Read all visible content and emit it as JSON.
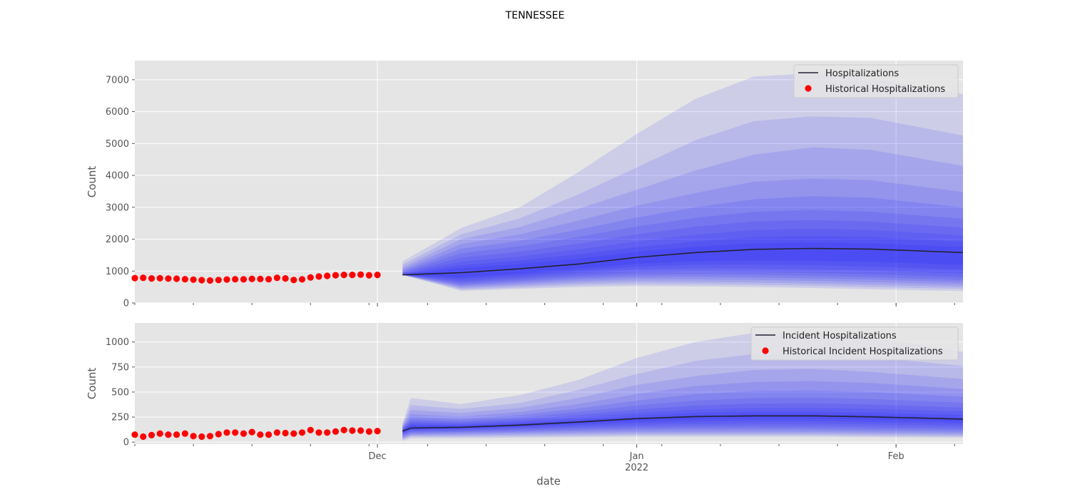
{
  "suptitle": "TENNESSEE",
  "colors": {
    "background": "#E5E5E5",
    "grid": "#FFFFFF",
    "band": "#0000FF",
    "median_line": "#222233",
    "history_marker": "#FF0000",
    "text": "#555555"
  },
  "xaxis": {
    "label": "date",
    "start_date": "2021-11-02",
    "end_date": "2022-02-09",
    "tick_labels": [
      {
        "date": "2021-12-01",
        "line1": "Dec",
        "line2": ""
      },
      {
        "date": "2022-01-01",
        "line1": "Jan",
        "line2": "2022"
      },
      {
        "date": "2022-02-01",
        "line1": "Feb",
        "line2": ""
      }
    ]
  },
  "chart_data": [
    {
      "type": "line",
      "panel": "top",
      "ylabel": "Count",
      "ylim": [
        0,
        7600
      ],
      "yticks": [
        0,
        1000,
        2000,
        3000,
        4000,
        5000,
        6000,
        7000
      ],
      "legend": {
        "placement": "top-right",
        "entries": [
          "Hospitalizations",
          "Historical Hospitalizations"
        ]
      },
      "history": {
        "name": "Historical Hospitalizations",
        "start_date": "2021-11-02",
        "values": [
          780,
          790,
          770,
          775,
          765,
          760,
          745,
          730,
          715,
          705,
          720,
          735,
          745,
          740,
          755,
          750,
          745,
          790,
          770,
          720,
          740,
          800,
          830,
          850,
          870,
          880,
          880,
          890,
          870,
          880
        ]
      },
      "forecast": {
        "name": "Hospitalizations",
        "dates": [
          "2021-12-04",
          "2021-12-11",
          "2021-12-18",
          "2021-12-25",
          "2022-01-01",
          "2022-01-08",
          "2022-01-15",
          "2022-01-22",
          "2022-01-29",
          "2022-02-09"
        ],
        "median": [
          880,
          950,
          1070,
          1220,
          1430,
          1580,
          1680,
          1710,
          1690,
          1580
        ],
        "bands": [
          {
            "lower": [
              880,
              380,
              440,
              500,
              530,
              520,
              500,
              470,
              430,
              370
            ],
            "upper": [
              1300,
              2350,
              3000,
              4100,
              5300,
              6400,
              7100,
              7200,
              7050,
              6550
            ]
          },
          {
            "lower": [
              880,
              420,
              490,
              560,
              600,
              590,
              570,
              540,
              500,
              440
            ],
            "upper": [
              1200,
              2150,
              2650,
              3400,
              4250,
              5100,
              5700,
              5850,
              5800,
              5250
            ]
          },
          {
            "lower": [
              880,
              460,
              540,
              620,
              670,
              660,
              640,
              610,
              570,
              510
            ],
            "upper": [
              1120,
              2000,
              2380,
              2950,
              3550,
              4150,
              4650,
              4880,
              4800,
              4300
            ]
          },
          {
            "lower": [
              880,
              500,
              590,
              680,
              740,
              740,
              720,
              690,
              650,
              580
            ],
            "upper": [
              1060,
              1850,
              2150,
              2580,
              3050,
              3450,
              3800,
              3900,
              3850,
              3480
            ]
          },
          {
            "lower": [
              880,
              540,
              640,
              740,
              810,
              820,
              800,
              770,
              730,
              650
            ],
            "upper": [
              1010,
              1700,
              1950,
              2300,
              2680,
              3000,
              3250,
              3350,
              3300,
              3000
            ]
          },
          {
            "lower": [
              880,
              580,
              690,
              800,
              880,
              900,
              880,
              850,
              810,
              720
            ],
            "upper": [
              970,
              1560,
              1780,
              2070,
              2400,
              2670,
              2860,
              2920,
              2860,
              2640
            ]
          },
          {
            "lower": [
              880,
              630,
              740,
              860,
              960,
              990,
              970,
              940,
              900,
              810
            ],
            "upper": [
              940,
              1420,
              1610,
              1860,
              2150,
              2390,
              2560,
              2600,
              2550,
              2360
            ]
          },
          {
            "lower": [
              880,
              680,
              800,
              930,
              1050,
              1090,
              1080,
              1050,
              1010,
              920
            ],
            "upper": [
              915,
              1290,
              1460,
              1680,
              1930,
              2140,
              2290,
              2330,
              2290,
              2120
            ]
          },
          {
            "lower": [
              880,
              740,
              860,
              1000,
              1140,
              1200,
              1200,
              1180,
              1140,
              1040
            ],
            "upper": [
              900,
              1180,
              1330,
              1520,
              1750,
              1930,
              2060,
              2100,
              2060,
              1920
            ]
          },
          {
            "lower": [
              880,
              800,
              920,
              1070,
              1230,
              1310,
              1330,
              1320,
              1290,
              1190
            ],
            "upper": [
              890,
              1090,
              1220,
              1390,
              1600,
              1760,
              1870,
              1900,
              1870,
              1750
            ]
          }
        ]
      }
    },
    {
      "type": "line",
      "panel": "bottom",
      "ylabel": "Count",
      "ylim": [
        -20,
        1190
      ],
      "yticks": [
        0,
        250,
        500,
        750,
        1000
      ],
      "legend": {
        "placement": "top-right",
        "entries": [
          "Incident Hospitalizations",
          "Historical Incident Hospitalizations"
        ]
      },
      "history": {
        "name": "Historical Incident Hospitalizations",
        "start_date": "2021-11-02",
        "values": [
          75,
          55,
          70,
          85,
          75,
          75,
          85,
          60,
          55,
          60,
          80,
          95,
          95,
          85,
          100,
          75,
          75,
          95,
          90,
          85,
          95,
          120,
          95,
          95,
          105,
          120,
          115,
          115,
          105,
          110
        ]
      },
      "forecast": {
        "name": "Incident Hospitalizations",
        "dates": [
          "2021-12-04",
          "2021-12-05",
          "2021-12-11",
          "2021-12-18",
          "2021-12-25",
          "2022-01-01",
          "2022-01-08",
          "2022-01-15",
          "2022-01-22",
          "2022-01-29",
          "2022-02-09"
        ],
        "median": [
          110,
          140,
          148,
          170,
          200,
          235,
          255,
          262,
          262,
          252,
          230
        ],
        "bands": [
          {
            "lower": [
              15,
              40,
              40,
              45,
              50,
              55,
              55,
              55,
              55,
              50,
              45
            ],
            "upper": [
              190,
              440,
              380,
              470,
              620,
              840,
              1000,
              1090,
              1090,
              1050,
              900
            ]
          },
          {
            "lower": [
              25,
              55,
              55,
              60,
              65,
              70,
              70,
              70,
              70,
              65,
              58
            ],
            "upper": [
              175,
              370,
              330,
              390,
              520,
              680,
              810,
              880,
              890,
              850,
              760
            ]
          },
          {
            "lower": [
              35,
              65,
              68,
              75,
              80,
              85,
              85,
              85,
              85,
              80,
              72
            ],
            "upper": [
              165,
              320,
              290,
              340,
              440,
              570,
              660,
              720,
              730,
              700,
              630
            ]
          },
          {
            "lower": [
              45,
              75,
              80,
              88,
              95,
              100,
              100,
              100,
              100,
              95,
              86
            ],
            "upper": [
              155,
              280,
              255,
              300,
              380,
              480,
              560,
              600,
              610,
              590,
              530
            ]
          },
          {
            "lower": [
              55,
              85,
              92,
              100,
              110,
              118,
              120,
              120,
              118,
              112,
              102
            ],
            "upper": [
              148,
              250,
              230,
              270,
              335,
              415,
              480,
              510,
              515,
              500,
              455
            ]
          },
          {
            "lower": [
              65,
              95,
              102,
              112,
              125,
              135,
              140,
              140,
              138,
              132,
              120
            ],
            "upper": [
              140,
              225,
              210,
              245,
              300,
              365,
              415,
              440,
              445,
              430,
              395
            ]
          },
          {
            "lower": [
              75,
              105,
              112,
              125,
              140,
              152,
              160,
              162,
              160,
              152,
              140
            ],
            "upper": [
              133,
              205,
              195,
              225,
              270,
              325,
              365,
              385,
              388,
              375,
              345
            ]
          },
          {
            "lower": [
              85,
              115,
              122,
              138,
              155,
              172,
              182,
              186,
              184,
              176,
              162
            ],
            "upper": [
              127,
              190,
              182,
              207,
              245,
              292,
              325,
              342,
              342,
              332,
              306
            ]
          },
          {
            "lower": [
              93,
              123,
              132,
              150,
              172,
              192,
              206,
              211,
              209,
              200,
              185
            ],
            "upper": [
              122,
              175,
              170,
              192,
              225,
              265,
              293,
              306,
              305,
              295,
              272
            ]
          },
          {
            "lower": [
              100,
              131,
              140,
              160,
              186,
              212,
              228,
              236,
              234,
              225,
              207
            ],
            "upper": [
              117,
              162,
              160,
              180,
              210,
              243,
              268,
              279,
              278,
              268,
              248
            ]
          }
        ]
      }
    }
  ]
}
